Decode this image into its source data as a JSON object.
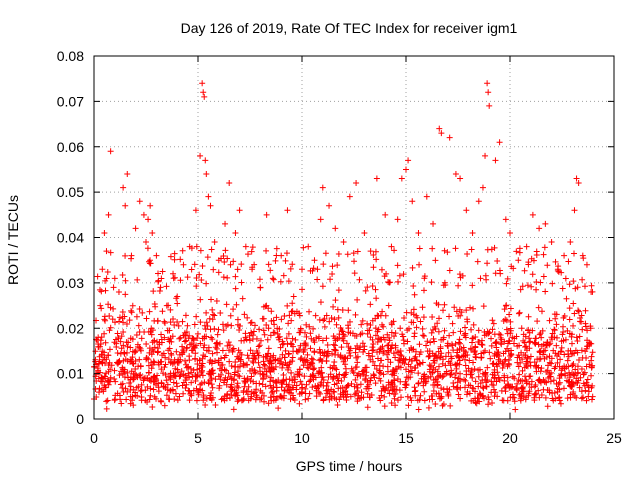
{
  "chart_data": {
    "type": "scatter",
    "title": "Day 126 of 2019, Rate Of TEC Index for receiver igm1",
    "xlabel": "GPS time / hours",
    "ylabel": "ROTI / TECUs",
    "xlim": [
      0,
      25
    ],
    "ylim": [
      0,
      0.08
    ],
    "x_ticks": [
      0,
      5,
      10,
      15,
      20,
      25
    ],
    "x_tick_labels": [
      "0",
      "5",
      "10",
      "15",
      "20",
      "25"
    ],
    "y_ticks": [
      0,
      0.01,
      0.02,
      0.03,
      0.04,
      0.05,
      0.06,
      0.07,
      0.08
    ],
    "y_tick_labels": [
      "0",
      "0.01",
      "0.02",
      "0.03",
      "0.04",
      "0.05",
      "0.06",
      "0.07",
      "0.08"
    ],
    "grid": true,
    "marker": "+",
    "color": "#ff0000",
    "series": [
      {
        "name": "ROTI",
        "points": [
          [
            0.1,
            0.012
          ],
          [
            0.2,
            0.018
          ],
          [
            0.3,
            0.025
          ],
          [
            0.4,
            0.033
          ],
          [
            0.5,
            0.041
          ],
          [
            0.6,
            0.037
          ],
          [
            0.7,
            0.045
          ],
          [
            0.8,
            0.059
          ],
          [
            0.9,
            0.022
          ],
          [
            1.0,
            0.031
          ],
          [
            1.2,
            0.028
          ],
          [
            1.4,
            0.051
          ],
          [
            1.5,
            0.047
          ],
          [
            1.6,
            0.054
          ],
          [
            1.8,
            0.036
          ],
          [
            2.0,
            0.042
          ],
          [
            2.2,
            0.048
          ],
          [
            2.4,
            0.045
          ],
          [
            2.5,
            0.039
          ],
          [
            2.6,
            0.044
          ],
          [
            2.7,
            0.047
          ],
          [
            2.8,
            0.041
          ],
          [
            3.0,
            0.036
          ],
          [
            3.2,
            0.029
          ],
          [
            3.5,
            0.025
          ],
          [
            3.8,
            0.032
          ],
          [
            4.0,
            0.027
          ],
          [
            4.3,
            0.034
          ],
          [
            4.6,
            0.038
          ],
          [
            4.9,
            0.046
          ],
          [
            5.1,
            0.058
          ],
          [
            5.2,
            0.074
          ],
          [
            5.25,
            0.072
          ],
          [
            5.3,
            0.071
          ],
          [
            5.35,
            0.057
          ],
          [
            5.4,
            0.054
          ],
          [
            5.5,
            0.049
          ],
          [
            5.6,
            0.047
          ],
          [
            5.8,
            0.039
          ],
          [
            6.0,
            0.035
          ],
          [
            6.3,
            0.043
          ],
          [
            6.5,
            0.052
          ],
          [
            6.8,
            0.041
          ],
          [
            7.0,
            0.046
          ],
          [
            7.3,
            0.038
          ],
          [
            7.6,
            0.033
          ],
          [
            8.0,
            0.029
          ],
          [
            8.3,
            0.045
          ],
          [
            8.6,
            0.031
          ],
          [
            9.0,
            0.036
          ],
          [
            9.3,
            0.046
          ],
          [
            9.6,
            0.027
          ],
          [
            10.0,
            0.033
          ],
          [
            10.3,
            0.038
          ],
          [
            10.6,
            0.035
          ],
          [
            10.9,
            0.044
          ],
          [
            11.0,
            0.051
          ],
          [
            11.3,
            0.047
          ],
          [
            11.6,
            0.042
          ],
          [
            12.0,
            0.039
          ],
          [
            12.3,
            0.049
          ],
          [
            12.6,
            0.052
          ],
          [
            13.0,
            0.041
          ],
          [
            13.3,
            0.037
          ],
          [
            13.6,
            0.053
          ],
          [
            14.0,
            0.045
          ],
          [
            14.3,
            0.038
          ],
          [
            14.6,
            0.044
          ],
          [
            14.8,
            0.053
          ],
          [
            15.0,
            0.055
          ],
          [
            15.1,
            0.057
          ],
          [
            15.3,
            0.048
          ],
          [
            15.6,
            0.041
          ],
          [
            16.0,
            0.049
          ],
          [
            16.3,
            0.043
          ],
          [
            16.6,
            0.064
          ],
          [
            16.7,
            0.063
          ],
          [
            17.1,
            0.062
          ],
          [
            17.4,
            0.054
          ],
          [
            17.6,
            0.053
          ],
          [
            17.9,
            0.046
          ],
          [
            18.2,
            0.041
          ],
          [
            18.5,
            0.048
          ],
          [
            18.7,
            0.051
          ],
          [
            18.8,
            0.058
          ],
          [
            18.9,
            0.074
          ],
          [
            18.95,
            0.072
          ],
          [
            19.0,
            0.069
          ],
          [
            19.3,
            0.057
          ],
          [
            19.5,
            0.061
          ],
          [
            19.8,
            0.044
          ],
          [
            20.0,
            0.041
          ],
          [
            20.4,
            0.035
          ],
          [
            20.8,
            0.038
          ],
          [
            21.1,
            0.045
          ],
          [
            21.4,
            0.042
          ],
          [
            21.7,
            0.043
          ],
          [
            22.0,
            0.039
          ],
          [
            22.3,
            0.033
          ],
          [
            22.6,
            0.036
          ],
          [
            22.9,
            0.039
          ],
          [
            23.1,
            0.046
          ],
          [
            23.2,
            0.053
          ],
          [
            23.3,
            0.052
          ],
          [
            23.5,
            0.036
          ],
          [
            23.7,
            0.034
          ],
          [
            23.9,
            0.028
          ]
        ],
        "dense_band": {
          "x_range": [
            0,
            24
          ],
          "typical_range": [
            0.004,
            0.028
          ],
          "minimum": 0.002,
          "point_count": 2400
        }
      }
    ]
  }
}
